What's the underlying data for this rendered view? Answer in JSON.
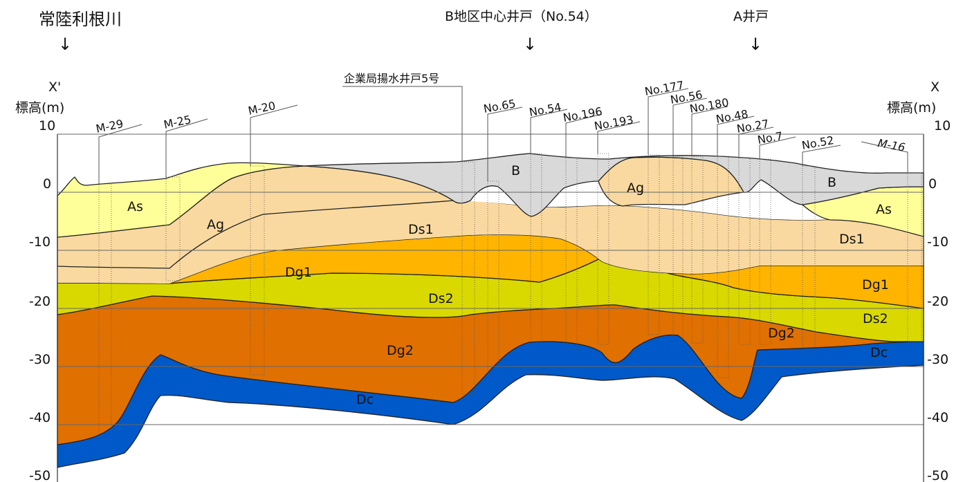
{
  "header": {
    "river_label": "常陸利根川",
    "river_arrow": "↓",
    "center_well_label": "B地区中心井戸（No.54）",
    "center_well_arrow": "↓",
    "a_well_label": "A井戸",
    "a_well_arrow": "↓",
    "pump_well_label": "企業局揚水井戸5号"
  },
  "axes": {
    "left_end_label": "X'",
    "right_end_label": "X",
    "left_unit_label": "標高(m)",
    "right_unit_label": "標高(m)",
    "ticks": [
      "10",
      "0",
      "-10",
      "-20",
      "-30",
      "-40",
      "-50"
    ]
  },
  "wells": [
    "M-29",
    "M-25",
    "M-20",
    "No.65",
    "No.54",
    "No.196",
    "No.193",
    "No.177",
    "No.56",
    "No.180",
    "No.48",
    "No.27",
    "No.7",
    "No.52",
    "M-16"
  ],
  "layers": {
    "B": "B",
    "B2": "B",
    "As": "As",
    "As2": "As",
    "Ag": "Ag",
    "Ag2": "Ag",
    "Ds1": "Ds1",
    "Ds1b": "Ds1",
    "Dg1": "Dg1",
    "Dg1b": "Dg1",
    "Ds2": "Ds2",
    "Ds2b": "Ds2",
    "Dg2": "Dg2",
    "Dg2b": "Dg2",
    "Dc": "Dc",
    "Dc2": "Dc"
  },
  "colors": {
    "B": "#d9d9d9",
    "As": "#ffff99",
    "Ag": "#f9d9a0",
    "Ds1": "#ffff00",
    "Dg1": "#ffb400",
    "Ds2": "#d9d900",
    "Dg2": "#e07000",
    "Dc": "#0059c8"
  }
}
